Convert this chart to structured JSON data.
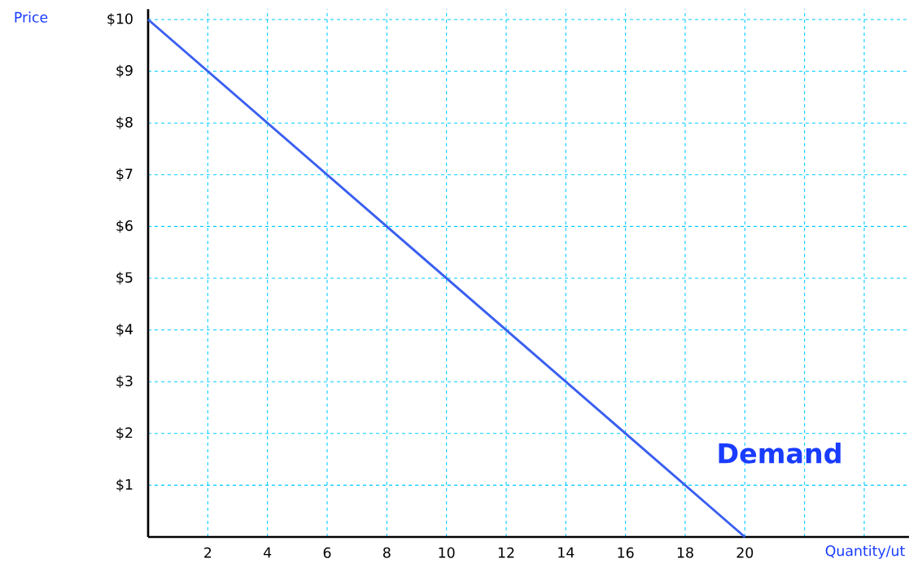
{
  "chart_data": {
    "type": "line",
    "xlabel": "Quantity/ut",
    "ylabel": "Price",
    "x": [
      0,
      20
    ],
    "values": [
      10,
      0
    ],
    "color": "#3a5ff0",
    "xlim": [
      0,
      25.5
    ],
    "ylim": [
      0,
      10.2
    ],
    "xticks": [
      2,
      4,
      6,
      8,
      10,
      12,
      14,
      16,
      18,
      20,
      {
        "value": 22,
        "label": null
      },
      {
        "value": 24,
        "label": null
      }
    ],
    "yticks": [
      {
        "value": 1,
        "label": "$1"
      },
      {
        "value": 2,
        "label": "$2"
      },
      {
        "value": 3,
        "label": "$3"
      },
      {
        "value": 4,
        "label": "$4"
      },
      {
        "value": 5,
        "label": "$5"
      },
      {
        "value": 6,
        "label": "$6"
      },
      {
        "value": 7,
        "label": "$7"
      },
      {
        "value": 8,
        "label": "$8"
      },
      {
        "value": 9,
        "label": "$9"
      },
      {
        "value": 10,
        "label": "$10"
      }
    ],
    "grid": true,
    "annotations": [
      "Demand"
    ]
  }
}
